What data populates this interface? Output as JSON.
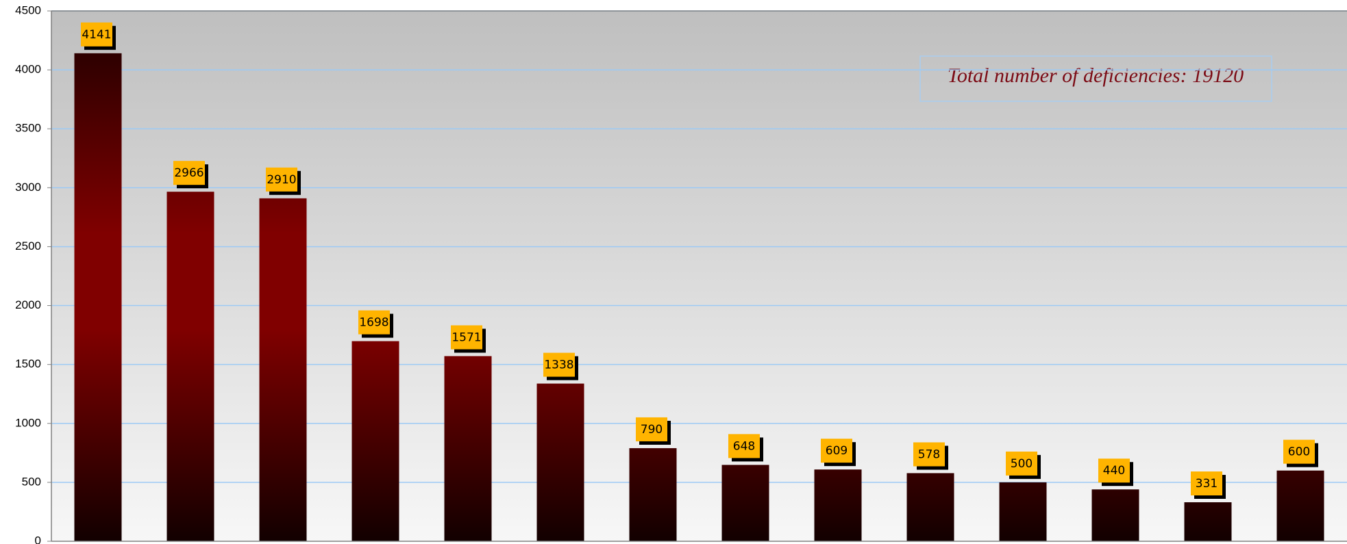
{
  "chart_data": {
    "type": "bar",
    "categories": [
      null,
      null,
      null,
      null,
      null,
      null,
      null,
      null,
      null,
      null,
      null,
      null,
      null,
      null
    ],
    "values": [
      4141,
      2966,
      2910,
      1698,
      1571,
      1338,
      790,
      648,
      609,
      578,
      500,
      440,
      331,
      600
    ],
    "color": "#800000",
    "ylim": [
      0,
      4500
    ],
    "yticks": [
      0,
      500,
      1000,
      1500,
      2000,
      2500,
      3000,
      3500,
      4000,
      4500
    ],
    "grid": true,
    "annotation": "Total number of deficiencies: 19120"
  }
}
